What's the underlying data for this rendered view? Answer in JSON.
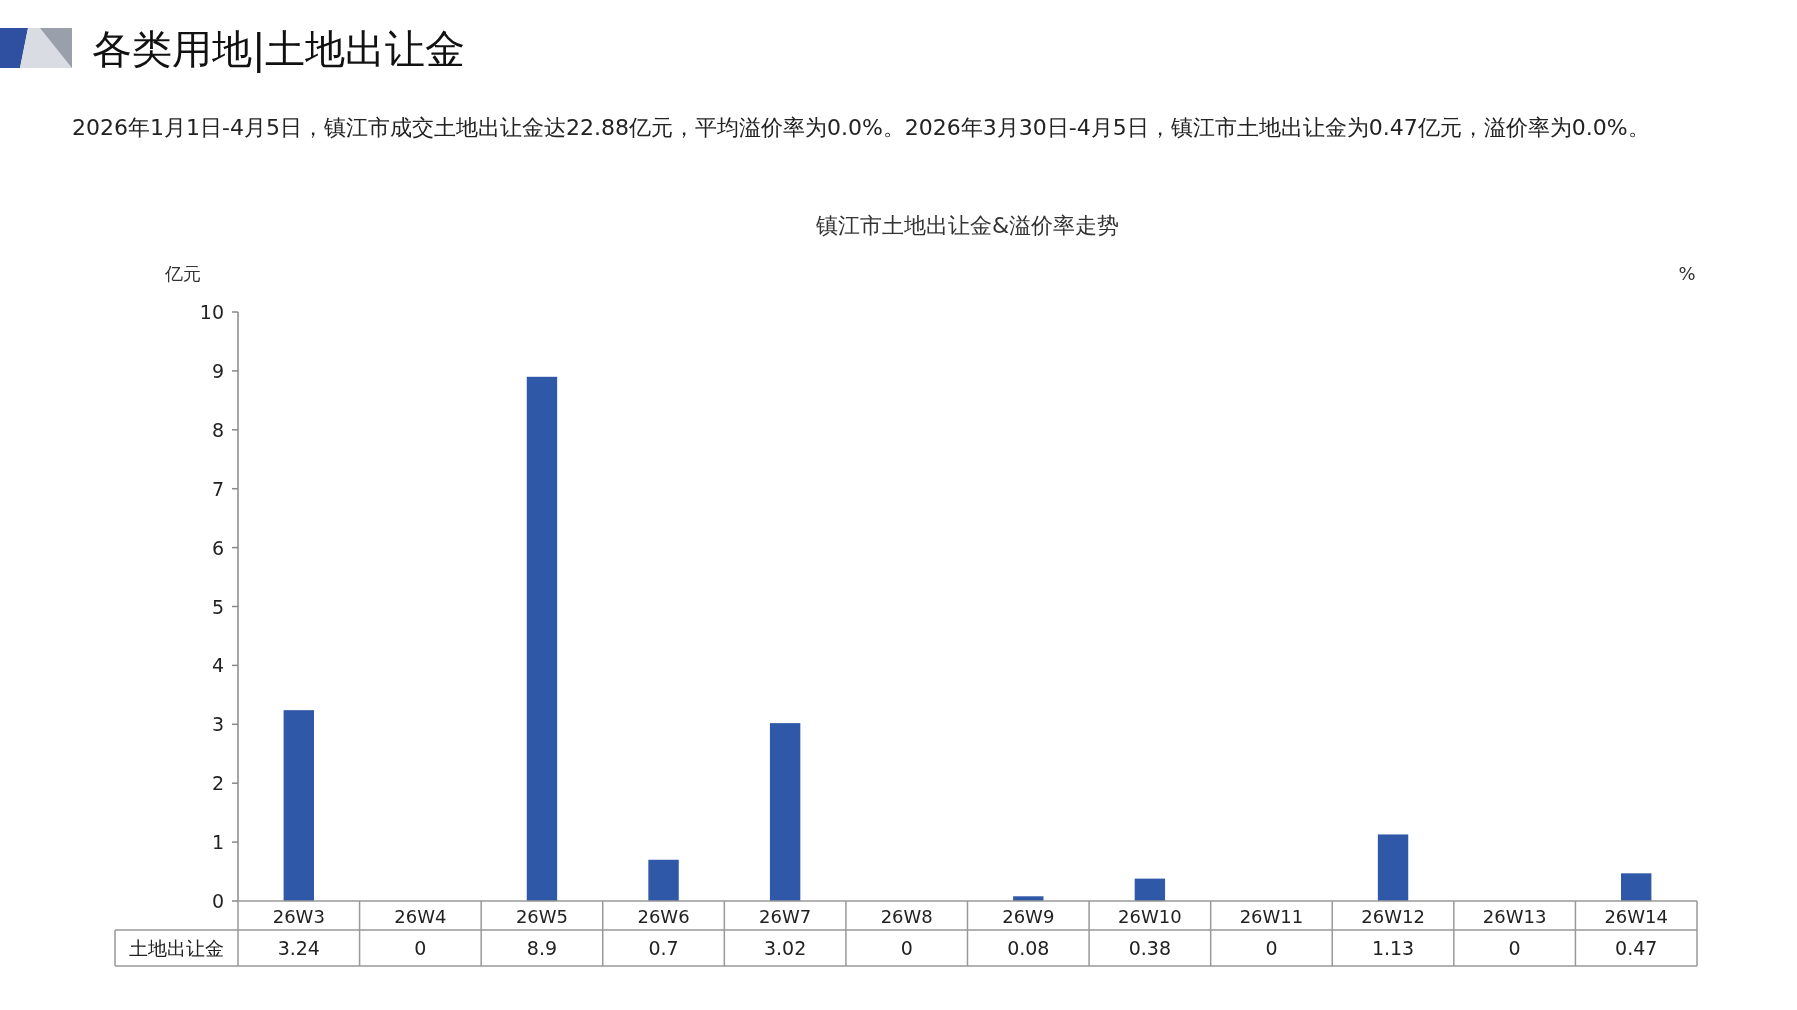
{
  "chart_data": {
    "type": "bar",
    "title": "镇江市土地出让金&溢价率走势",
    "subtitle": "2026年1月1日-4月5日，镇江市成交土地出让金达22.88亿元，平均溢价率为0.0%。2026年3月30日-4月5日，镇江市土地出让金为0.47亿元，溢价率为0.0%。",
    "annotations": [
      "各类用地|土地出让金"
    ],
    "ylabel": "亿元",
    "y2label": "%",
    "categories": [
      "26W3",
      "26W4",
      "26W5",
      "26W6",
      "26W7",
      "26W8",
      "26W9",
      "26W10",
      "26W11",
      "26W12",
      "26W13",
      "26W14"
    ],
    "series": [
      {
        "name": "土地出让金",
        "color": "#2f59a8",
        "values": [
          3.24,
          0,
          8.9,
          0.7,
          3.02,
          0,
          0.08,
          0.38,
          0,
          1.13,
          0,
          0.47
        ]
      }
    ],
    "ylim": [
      0,
      10
    ],
    "yticks": [
      0,
      1,
      2,
      3,
      4,
      5,
      6,
      7,
      8,
      9,
      10
    ],
    "grid": false,
    "data_labels": true
  }
}
